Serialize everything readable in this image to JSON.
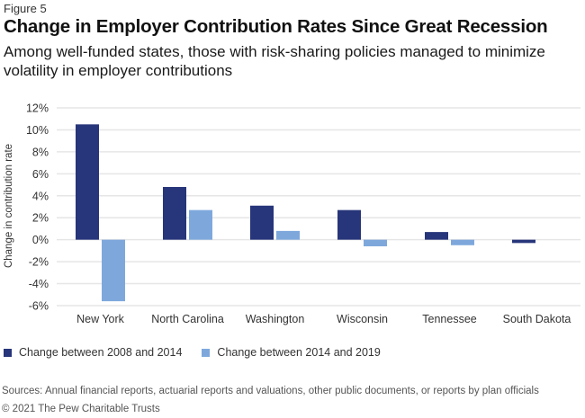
{
  "figure_label": "Figure 5",
  "title": "Change in Employer Contribution Rates Since Great Recession",
  "subtitle": "Among well-funded states, those with risk-sharing policies managed to minimize volatility in employer contributions",
  "sources": "Sources: Annual financial reports, actuarial reports and valuations, other public documents, or reports by plan officials",
  "copyright": "© 2021 The Pew Charitable Trusts",
  "colors": {
    "series1": "#27357a",
    "series2": "#7ea8dc",
    "grid": "#e6e6e6"
  },
  "chart_data": {
    "type": "bar",
    "title": "Change in Employer Contribution Rates Since Great Recession",
    "xlabel": "",
    "ylabel": "Change in contribution rate",
    "categories": [
      "New York",
      "North Carolina",
      "Washington",
      "Wisconsin",
      "Tennessee",
      "South Dakota"
    ],
    "series": [
      {
        "name": "Change between 2008 and 2014",
        "values": [
          10.5,
          4.8,
          3.1,
          2.7,
          0.7,
          -0.3
        ]
      },
      {
        "name": "Change between 2014 and 2019",
        "values": [
          -5.6,
          2.7,
          0.8,
          -0.6,
          -0.5,
          null
        ]
      }
    ],
    "ylim": [
      -6,
      12
    ],
    "yticks": [
      12,
      10,
      8,
      6,
      4,
      2,
      0,
      -2,
      -4,
      -6
    ],
    "ytick_labels": [
      "12%",
      "10%",
      "8%",
      "6%",
      "4%",
      "2%",
      "0%",
      "-2%",
      "-4%",
      "-6%"
    ],
    "grid": true,
    "legend_position": "bottom-left"
  }
}
